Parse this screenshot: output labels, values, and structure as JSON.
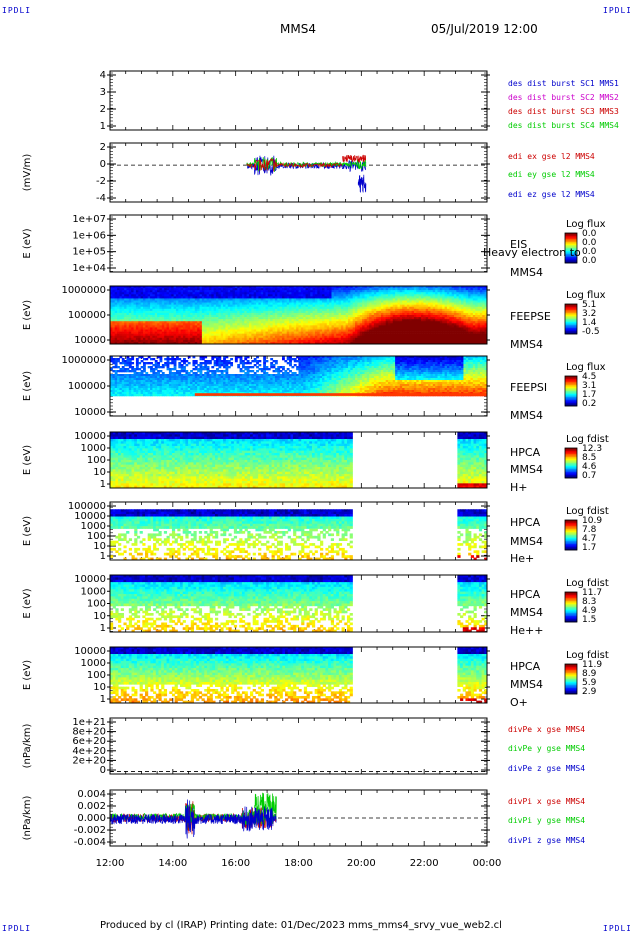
{
  "corners": {
    "tl": "IPDLI",
    "tr": "IPDLI",
    "bl": "IPDLI",
    "br": "IPDLI"
  },
  "header": {
    "spacecraft": "MMS4",
    "datetime": "05/Jul/2019 12:00"
  },
  "footer": {
    "text": "Produced by cl (IRAP)   Printing date: 01/Dec/2023   mms_mms4_srvy_vue_web2.cl"
  },
  "colors": {
    "blue": "#0000cc",
    "red": "#cc0000",
    "green": "#00cc00",
    "magenta": "#cc00cc"
  },
  "chart_data": [
    {
      "type": "line",
      "yticks": [
        "4",
        "3",
        "2",
        "1"
      ],
      "yrange": [
        0.5,
        4.5
      ],
      "legend": [
        {
          "text": "des dist burst SC1 MMS1",
          "color": "#0000cc"
        },
        {
          "text": "des dist burst SC2 MMS2",
          "color": "#cc00cc"
        },
        {
          "text": "des dist burst SC3 MMS3",
          "color": "#cc0000"
        },
        {
          "text": "des dist burst SC4 MMS4",
          "color": "#00cc00"
        }
      ]
    },
    {
      "type": "line",
      "ylabel": "(mV/m)",
      "yticks": [
        "2",
        "0",
        "-2",
        "-4"
      ],
      "yrange": [
        -5,
        3
      ],
      "legend": [
        {
          "text": "edi ex gse l2 MMS4",
          "color": "#cc0000"
        },
        {
          "text": "edi ey gse l2 MMS4",
          "color": "#00cc00"
        },
        {
          "text": "edi ez gse l2 MMS4",
          "color": "#0000cc"
        }
      ]
    },
    {
      "type": "heatmap",
      "ylabel": "E (eV)",
      "yticks": [
        "1e+07",
        "1e+06",
        "1e+05",
        "1e+04"
      ],
      "side_labels": [
        "EIS",
        "MMS4"
      ],
      "overlap_text": "Heavy electron to",
      "colorbar": {
        "title": "Log flux",
        "values": [
          "0.0",
          "0.0",
          "0.0",
          "0.0"
        ]
      }
    },
    {
      "type": "heatmap",
      "ylabel": "E (eV)",
      "yticks": [
        "1000000",
        "100000",
        "10000"
      ],
      "side_labels": [
        "FEEPSE",
        "MMS4"
      ],
      "colorbar": {
        "title": "Log flux",
        "values": [
          "5.1",
          "3.2",
          "1.4",
          "-0.5"
        ]
      }
    },
    {
      "type": "heatmap",
      "ylabel": "E (eV)",
      "yticks": [
        "1000000",
        "100000",
        "10000"
      ],
      "side_labels": [
        "FEEPSI",
        "MMS4"
      ],
      "colorbar": {
        "title": "Log flux",
        "values": [
          "4.5",
          "3.1",
          "1.7",
          "0.2"
        ]
      }
    },
    {
      "type": "heatmap",
      "ylabel": "E (eV)",
      "yticks": [
        "10000",
        "1000",
        "100",
        "10",
        "1"
      ],
      "side_labels": [
        "HPCA",
        "MMS4",
        "H+"
      ],
      "colorbar": {
        "title": "Log fdist",
        "values": [
          "12.3",
          "8.5",
          "4.6",
          "0.7"
        ]
      }
    },
    {
      "type": "heatmap",
      "ylabel": "E (eV)",
      "yticks": [
        "100000",
        "10000",
        "1000",
        "100",
        "10",
        "1"
      ],
      "side_labels": [
        "HPCA",
        "MMS4",
        "He+"
      ],
      "colorbar": {
        "title": "Log fdist",
        "values": [
          "10.9",
          "7.8",
          "4.7",
          "1.7"
        ]
      }
    },
    {
      "type": "heatmap",
      "ylabel": "E (eV)",
      "yticks": [
        "10000",
        "1000",
        "100",
        "10",
        "1"
      ],
      "side_labels": [
        "HPCA",
        "MMS4",
        "He++"
      ],
      "colorbar": {
        "title": "Log fdist",
        "values": [
          "11.7",
          "8.3",
          "4.9",
          "1.5"
        ]
      }
    },
    {
      "type": "heatmap",
      "ylabel": "E (eV)",
      "yticks": [
        "10000",
        "1000",
        "100",
        "10",
        "1"
      ],
      "side_labels": [
        "HPCA",
        "MMS4",
        "O+"
      ],
      "colorbar": {
        "title": "Log fdist",
        "values": [
          "11.9",
          "8.9",
          "5.9",
          "2.9"
        ]
      }
    },
    {
      "type": "line",
      "ylabel": "(nPa/km)",
      "yticks": [
        "1e+21",
        "8e+20",
        "6e+20",
        "4e+20",
        "2e+20",
        "0"
      ],
      "yrange": [
        -5e+19,
        1.1e+21
      ],
      "legend": [
        {
          "text": "divPe x gse MMS4",
          "color": "#cc0000"
        },
        {
          "text": "divPe y gse MMS4",
          "color": "#00cc00"
        },
        {
          "text": "divPe z gse MMS4",
          "color": "#0000cc"
        }
      ]
    },
    {
      "type": "line",
      "ylabel": "(nPa/km)",
      "yticks": [
        "0.004",
        "0.002",
        "0.000",
        "-0.002",
        "-0.004"
      ],
      "yrange": [
        -0.005,
        0.005
      ],
      "legend": [
        {
          "text": "divPi x gse MMS4",
          "color": "#cc0000"
        },
        {
          "text": "divPi y gse MMS4",
          "color": "#00cc00"
        },
        {
          "text": "divPi z gse MMS4",
          "color": "#0000cc"
        }
      ]
    }
  ],
  "xaxis": {
    "ticks": [
      "12:00",
      "14:00",
      "16:00",
      "18:00",
      "20:00",
      "22:00",
      "00:00"
    ],
    "range_hours": [
      12,
      24
    ]
  }
}
